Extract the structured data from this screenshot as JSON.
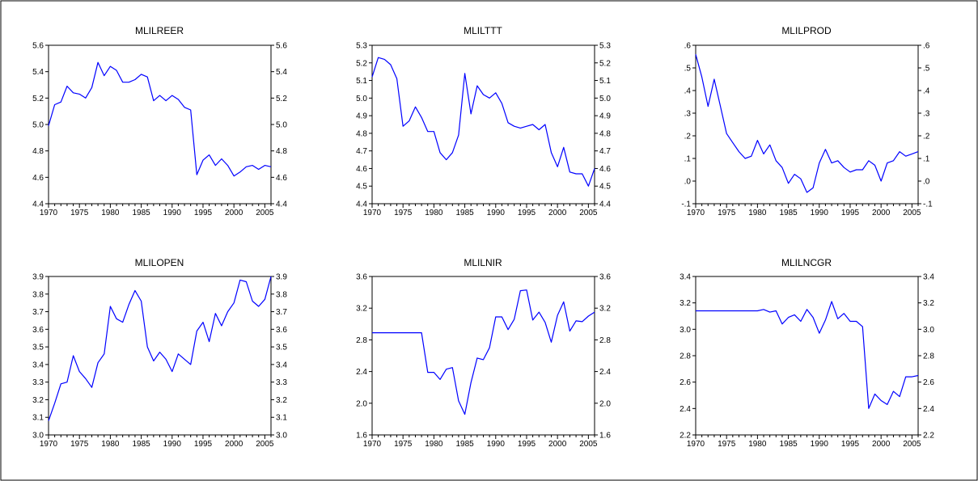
{
  "style": {
    "line_color": "#0000ff",
    "axis_color": "#000000",
    "background": "#ffffff",
    "frame_color": "#000000"
  },
  "chart_data": [
    {
      "type": "line",
      "title": "MLILREER",
      "x": [
        1970,
        1971,
        1972,
        1973,
        1974,
        1975,
        1976,
        1977,
        1978,
        1979,
        1980,
        1981,
        1982,
        1983,
        1984,
        1985,
        1986,
        1987,
        1988,
        1989,
        1990,
        1991,
        1992,
        1993,
        1994,
        1995,
        1996,
        1997,
        1998,
        1999,
        2000,
        2001,
        2002,
        2003,
        2004,
        2005,
        2006
      ],
      "series": [
        {
          "values": [
            4.99,
            5.15,
            5.17,
            5.29,
            5.24,
            5.23,
            5.2,
            5.28,
            5.47,
            5.37,
            5.44,
            5.41,
            5.32,
            5.32,
            5.34,
            5.38,
            5.36,
            5.18,
            5.22,
            5.18,
            5.22,
            5.19,
            5.13,
            5.11,
            4.62,
            4.73,
            4.77,
            4.69,
            4.74,
            4.69,
            4.61,
            4.64,
            4.68,
            4.69,
            4.66,
            4.69,
            4.68
          ]
        }
      ],
      "xlim": [
        1970,
        2006
      ],
      "ylim": [
        4.4,
        5.6
      ],
      "xticks": [
        "1970",
        "1975",
        "1980",
        "1985",
        "1990",
        "1995",
        "2000",
        "2005"
      ],
      "yticks": [
        "4.4",
        "4.6",
        "4.8",
        "5.0",
        "5.2",
        "5.4",
        "5.6"
      ]
    },
    {
      "type": "line",
      "title": "MLILTTT",
      "x": [
        1970,
        1971,
        1972,
        1973,
        1974,
        1975,
        1976,
        1977,
        1978,
        1979,
        1980,
        1981,
        1982,
        1983,
        1984,
        1985,
        1986,
        1987,
        1988,
        1989,
        1990,
        1991,
        1992,
        1993,
        1994,
        1995,
        1996,
        1997,
        1998,
        1999,
        2000,
        2001,
        2002,
        2003,
        2004,
        2005,
        2006
      ],
      "series": [
        {
          "values": [
            5.12,
            5.23,
            5.22,
            5.19,
            5.11,
            4.84,
            4.87,
            4.95,
            4.89,
            4.81,
            4.81,
            4.69,
            4.65,
            4.69,
            4.79,
            5.14,
            4.91,
            5.07,
            5.02,
            5.0,
            5.03,
            4.97,
            4.86,
            4.84,
            4.83,
            4.84,
            4.85,
            4.82,
            4.85,
            4.69,
            4.61,
            4.72,
            4.58,
            4.57,
            4.57,
            4.5,
            4.6
          ]
        }
      ],
      "xlim": [
        1970,
        2006
      ],
      "ylim": [
        4.4,
        5.3
      ],
      "xticks": [
        "1970",
        "1975",
        "1980",
        "1985",
        "1990",
        "1995",
        "2000",
        "2005"
      ],
      "yticks": [
        "4.4",
        "4.5",
        "4.6",
        "4.7",
        "4.8",
        "4.9",
        "5.0",
        "5.1",
        "5.2",
        "5.3"
      ]
    },
    {
      "type": "line",
      "title": "MLILPROD",
      "x": [
        1970,
        1971,
        1972,
        1973,
        1974,
        1975,
        1976,
        1977,
        1978,
        1979,
        1980,
        1981,
        1982,
        1983,
        1984,
        1985,
        1986,
        1987,
        1988,
        1989,
        1990,
        1991,
        1992,
        1993,
        1994,
        1995,
        1996,
        1997,
        1998,
        1999,
        2000,
        2001,
        2002,
        2003,
        2004,
        2005,
        2006
      ],
      "series": [
        {
          "values": [
            0.56,
            0.46,
            0.33,
            0.45,
            0.33,
            0.21,
            0.17,
            0.13,
            0.1,
            0.11,
            0.18,
            0.12,
            0.16,
            0.09,
            0.06,
            -0.01,
            0.03,
            0.01,
            -0.05,
            -0.03,
            0.08,
            0.14,
            0.08,
            0.09,
            0.06,
            0.04,
            0.05,
            0.05,
            0.09,
            0.07,
            0.0,
            0.08,
            0.09,
            0.13,
            0.11,
            0.12,
            0.13
          ]
        }
      ],
      "xlim": [
        1970,
        2006
      ],
      "ylim": [
        -0.1,
        0.6
      ],
      "xticks": [
        "1970",
        "1975",
        "1980",
        "1985",
        "1990",
        "1995",
        "2000",
        "2005"
      ],
      "yticks": [
        "-.1",
        ".0",
        ".1",
        ".2",
        ".3",
        ".4",
        ".5",
        ".6"
      ]
    },
    {
      "type": "line",
      "title": "MLILOPEN",
      "x": [
        1970,
        1971,
        1972,
        1973,
        1974,
        1975,
        1976,
        1977,
        1978,
        1979,
        1980,
        1981,
        1982,
        1983,
        1984,
        1985,
        1986,
        1987,
        1988,
        1989,
        1990,
        1991,
        1992,
        1993,
        1994,
        1995,
        1996,
        1997,
        1998,
        1999,
        2000,
        2001,
        2002,
        2003,
        2004,
        2005,
        2006
      ],
      "series": [
        {
          "values": [
            3.08,
            3.18,
            3.29,
            3.3,
            3.45,
            3.36,
            3.32,
            3.27,
            3.41,
            3.46,
            3.73,
            3.66,
            3.64,
            3.74,
            3.82,
            3.76,
            3.5,
            3.42,
            3.47,
            3.43,
            3.36,
            3.46,
            3.43,
            3.4,
            3.59,
            3.64,
            3.53,
            3.69,
            3.62,
            3.7,
            3.75,
            3.88,
            3.87,
            3.76,
            3.73,
            3.77,
            3.9
          ]
        }
      ],
      "xlim": [
        1970,
        2006
      ],
      "ylim": [
        3.0,
        3.9
      ],
      "xticks": [
        "1970",
        "1975",
        "1980",
        "1985",
        "1990",
        "1995",
        "2000",
        "2005"
      ],
      "yticks": [
        "3.0",
        "3.1",
        "3.2",
        "3.3",
        "3.4",
        "3.5",
        "3.6",
        "3.7",
        "3.8",
        "3.9"
      ]
    },
    {
      "type": "line",
      "title": "MLILNIR",
      "x": [
        1970,
        1971,
        1972,
        1973,
        1974,
        1975,
        1976,
        1977,
        1978,
        1979,
        1980,
        1981,
        1982,
        1983,
        1984,
        1985,
        1986,
        1987,
        1988,
        1989,
        1990,
        1991,
        1992,
        1993,
        1994,
        1995,
        1996,
        1997,
        1998,
        1999,
        2000,
        2001,
        2002,
        2003,
        2004,
        2005,
        2006
      ],
      "series": [
        {
          "values": [
            2.89,
            2.89,
            2.89,
            2.89,
            2.89,
            2.89,
            2.89,
            2.89,
            2.89,
            2.39,
            2.39,
            2.3,
            2.43,
            2.45,
            2.03,
            1.86,
            2.26,
            2.57,
            2.55,
            2.7,
            3.09,
            3.09,
            2.93,
            3.06,
            3.42,
            3.43,
            3.05,
            3.15,
            3.02,
            2.77,
            3.11,
            3.28,
            2.91,
            3.04,
            3.03,
            3.1,
            3.15
          ]
        }
      ],
      "xlim": [
        1970,
        2006
      ],
      "ylim": [
        1.6,
        3.6
      ],
      "xticks": [
        "1970",
        "1975",
        "1980",
        "1985",
        "1990",
        "1995",
        "2000",
        "2005"
      ],
      "yticks": [
        "1.6",
        "2.0",
        "2.4",
        "2.8",
        "3.2",
        "3.6"
      ]
    },
    {
      "type": "line",
      "title": "MLILNCGR",
      "x": [
        1970,
        1971,
        1972,
        1973,
        1974,
        1975,
        1976,
        1977,
        1978,
        1979,
        1980,
        1981,
        1982,
        1983,
        1984,
        1985,
        1986,
        1987,
        1988,
        1989,
        1990,
        1991,
        1992,
        1993,
        1994,
        1995,
        1996,
        1997,
        1998,
        1999,
        2000,
        2001,
        2002,
        2003,
        2004,
        2005,
        2006
      ],
      "series": [
        {
          "values": [
            3.14,
            3.14,
            3.14,
            3.14,
            3.14,
            3.14,
            3.14,
            3.14,
            3.14,
            3.14,
            3.14,
            3.15,
            3.13,
            3.14,
            3.04,
            3.09,
            3.11,
            3.06,
            3.15,
            3.09,
            2.97,
            3.07,
            3.21,
            3.08,
            3.12,
            3.06,
            3.06,
            3.02,
            2.4,
            2.51,
            2.46,
            2.43,
            2.53,
            2.49,
            2.64,
            2.64,
            2.65
          ]
        }
      ],
      "xlim": [
        1970,
        2006
      ],
      "ylim": [
        2.2,
        3.4
      ],
      "xticks": [
        "1970",
        "1975",
        "1980",
        "1985",
        "1990",
        "1995",
        "2000",
        "2005"
      ],
      "yticks": [
        "2.2",
        "2.4",
        "2.6",
        "2.8",
        "3.0",
        "3.2",
        "3.4"
      ]
    }
  ]
}
